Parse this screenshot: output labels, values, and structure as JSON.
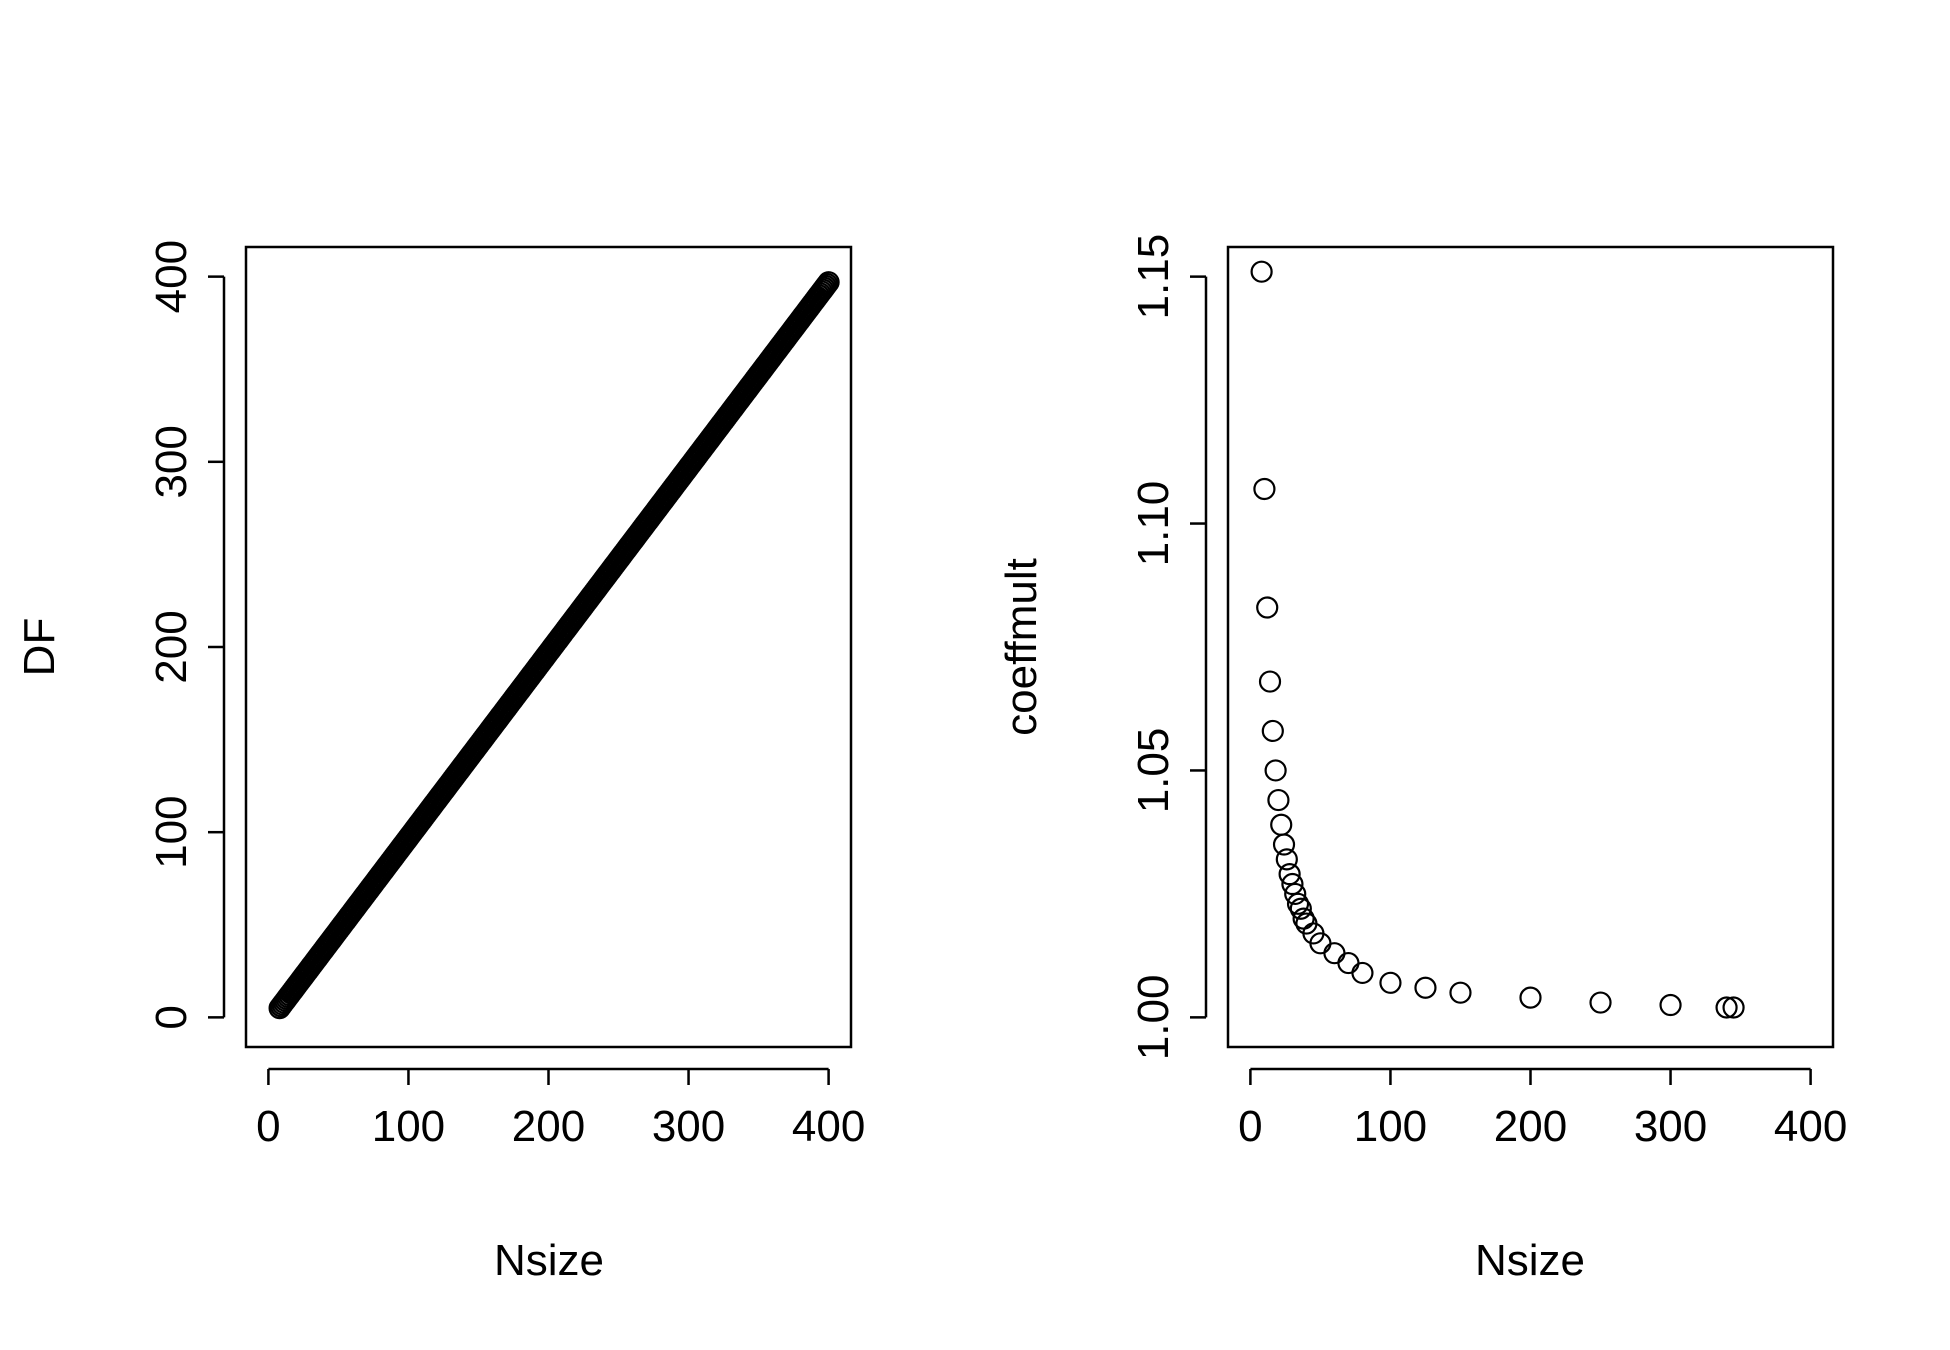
{
  "chart_data": [
    {
      "type": "scatter",
      "xlabel": "Nsize",
      "ylabel": "DF",
      "xlim": [
        0,
        400
      ],
      "ylim": [
        0,
        400
      ],
      "xticks": [
        0,
        100,
        200,
        300,
        400
      ],
      "yticks": [
        0,
        100,
        200,
        300,
        400
      ],
      "xtick_labels": [
        "0",
        "100",
        "200",
        "300",
        "400"
      ],
      "ytick_labels": [
        "0",
        "100",
        "200",
        "300",
        "400"
      ],
      "series": [
        {
          "relation": "DF = Nsize - 3",
          "x_range": [
            8,
            400
          ],
          "x_step": 1
        }
      ],
      "grid": false,
      "marker": "open-circle"
    },
    {
      "type": "scatter",
      "xlabel": "Nsize",
      "ylabel": "coeffmult",
      "xlim": [
        0,
        400
      ],
      "ylim": [
        1.0,
        1.15
      ],
      "xticks": [
        0,
        100,
        200,
        300,
        400
      ],
      "yticks": [
        1.0,
        1.05,
        1.1,
        1.15
      ],
      "xtick_labels": [
        "0",
        "100",
        "200",
        "300",
        "400"
      ],
      "ytick_labels": [
        "1.00",
        "1.05",
        "1.10",
        "1.15"
      ],
      "series": [
        {
          "x": [
            8,
            10,
            12,
            14,
            16,
            18,
            20,
            22,
            24,
            26,
            28,
            30,
            32,
            34,
            36,
            38,
            40,
            45,
            50,
            60,
            70,
            80,
            100,
            125,
            150,
            200,
            250,
            300,
            340,
            345
          ],
          "y": [
            1.151,
            1.107,
            1.083,
            1.068,
            1.058,
            1.05,
            1.044,
            1.039,
            1.035,
            1.032,
            1.029,
            1.027,
            1.025,
            1.023,
            1.022,
            1.02,
            1.019,
            1.017,
            1.015,
            1.013,
            1.011,
            1.009,
            1.007,
            1.006,
            1.005,
            1.004,
            1.003,
            1.0025,
            1.002,
            1.002
          ]
        }
      ],
      "grid": false,
      "marker": "open-circle"
    }
  ]
}
